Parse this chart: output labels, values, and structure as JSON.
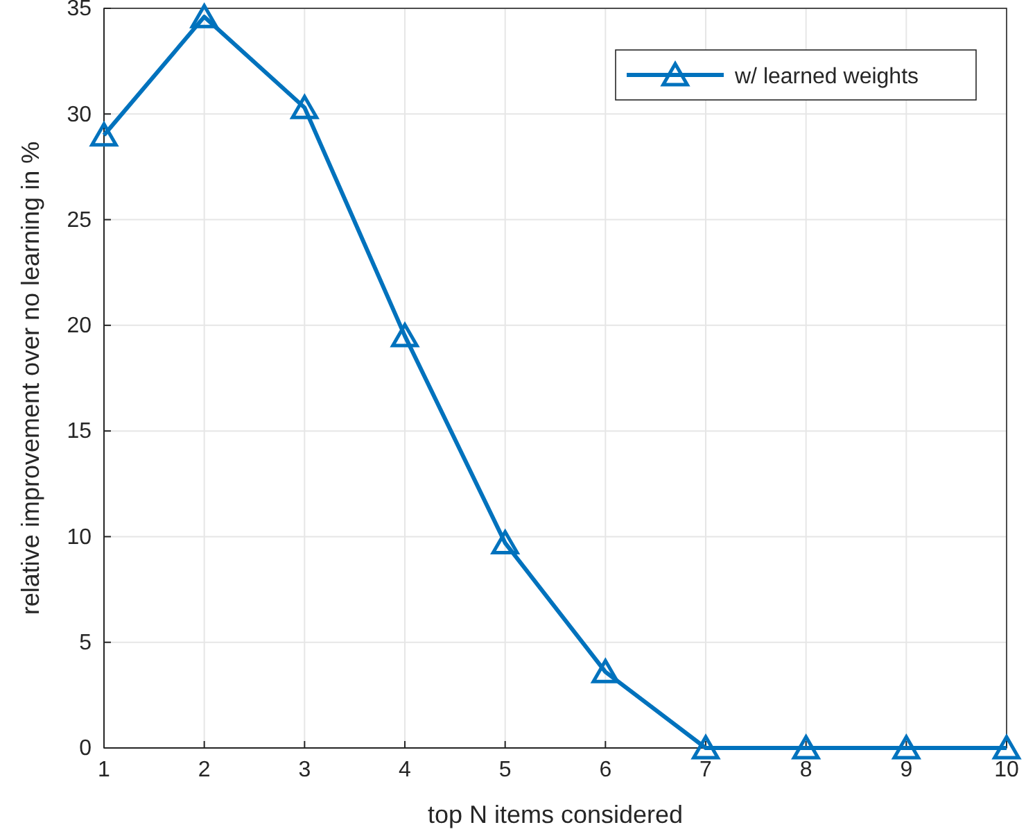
{
  "chart_data": {
    "type": "line",
    "xlabel": "top N items considered",
    "ylabel": "relative improvement over no learning in %",
    "x": [
      1,
      2,
      3,
      4,
      5,
      6,
      7,
      8,
      9,
      10
    ],
    "series": [
      {
        "name": "w/ learned weights",
        "color": "#0072bd",
        "values": [
          29,
          34.6,
          30.3,
          19.5,
          9.7,
          3.6,
          0,
          0,
          0,
          0
        ]
      }
    ],
    "xlim": [
      1,
      10
    ],
    "xticks": [
      1,
      2,
      3,
      4,
      5,
      6,
      7,
      8,
      9,
      10
    ],
    "ylim": [
      0,
      35
    ],
    "yticks": [
      0,
      5,
      10,
      15,
      20,
      25,
      30,
      35
    ],
    "grid": true,
    "legend": "top right",
    "marker": "triangle",
    "line_style": "solid"
  }
}
